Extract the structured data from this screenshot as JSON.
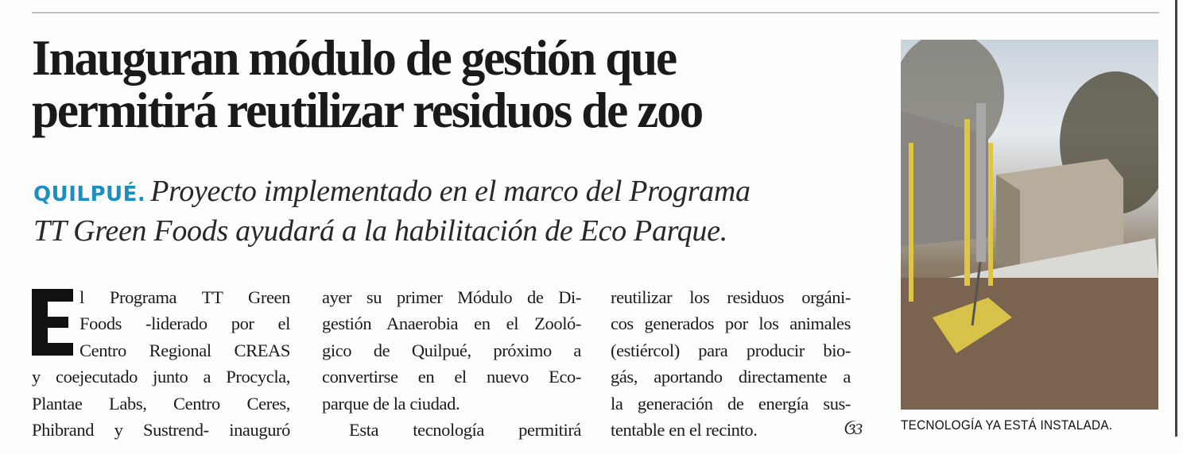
{
  "article": {
    "headline": [
      "Inauguran módulo de gestión que",
      "permitirá reutilizar residuos de zoo"
    ],
    "kicker": "QUILPUÉ.",
    "deck": [
      "Proyecto implementado en el marco del Programa",
      "TT Green Foods ayudará a la habilitación de Eco Parque."
    ],
    "dropcap": "E",
    "columns": [
      [
        "l Programa TT Green",
        "Foods -liderado por el",
        "Centro Regional CREAS",
        "y coejecutado junto a Procycla,",
        "Plantae Labs, Centro Ceres,",
        "Phibrand y Sustrend- inauguró"
      ],
      [
        "ayer su primer Módulo de Di-",
        "gestión Anaerobia en el Zooló-",
        "gico de Quilpué, próximo a",
        "convertirse en el nuevo Eco-",
        "parque de la ciudad.",
        "Esta tecnología permitirá"
      ],
      [
        "reutilizar los residuos orgáni-",
        "cos generados por los animales",
        "(estiércol) para producir bio-",
        "gás, aportando directamente a",
        "la generación de energía sus-",
        "tentable en el recinto."
      ]
    ],
    "end_mark": "ઉ3",
    "photo_caption": "TECNOLOGÍA YA ESTÁ INSTALADA.",
    "kicker_color": "#1a8fc0"
  }
}
